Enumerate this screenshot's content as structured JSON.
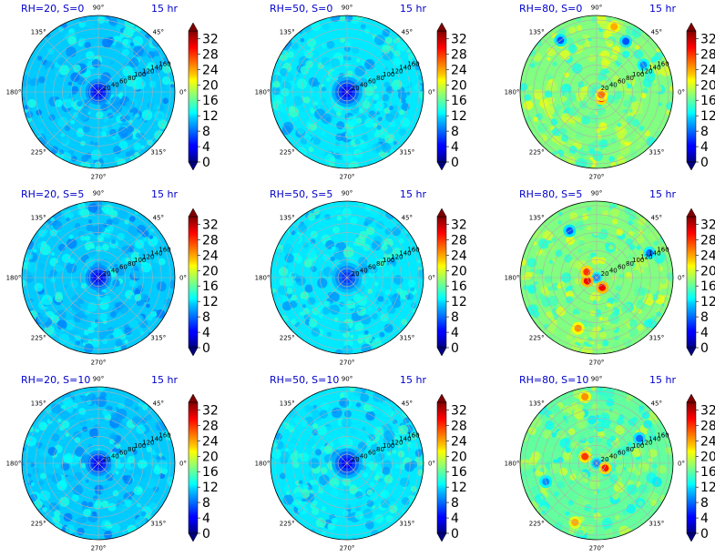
{
  "chart_data": {
    "type": "heatmap",
    "projection": "polar",
    "grid": true,
    "colormap": "jet",
    "title_color": "#0000cc",
    "time_label": "15 hr",
    "angle_tick_labels": [
      "0°",
      "45°",
      "90°",
      "135°",
      "180°",
      "225°",
      "270°",
      "315°"
    ],
    "radial_tick_labels": [
      "20",
      "40",
      "60",
      "80",
      "100",
      "120",
      "140",
      "160"
    ],
    "rlim": [
      0,
      170
    ],
    "colorbar": {
      "ticks": [
        "0",
        "4",
        "8",
        "12",
        "16",
        "20",
        "24",
        "28",
        "32"
      ],
      "vmin": 0,
      "vmax": 34,
      "extend": "both"
    },
    "panels": [
      {
        "title": "RH=20, S=0",
        "time": "15 hr",
        "rh": 20,
        "s": 0,
        "field": {
          "background_mean": 11,
          "center_value": 4,
          "center_radius": 25,
          "texture_amplitude": 3,
          "hotspots": []
        }
      },
      {
        "title": "RH=50, S=0",
        "time": "15 hr",
        "rh": 50,
        "s": 0,
        "field": {
          "background_mean": 12,
          "center_value": 4,
          "center_radius": 30,
          "texture_amplitude": 3,
          "hotspots": []
        }
      },
      {
        "title": "RH=80, S=0",
        "time": "15 hr",
        "rh": 80,
        "s": 0,
        "field": {
          "background_mean": 17,
          "center_value": 14,
          "center_radius": 15,
          "texture_amplitude": 4,
          "hotspots": [
            {
              "angle": 305,
              "r": 18,
              "value": 28
            },
            {
              "angle": 330,
              "r": 12,
              "value": 26
            },
            {
              "angle": 75,
              "r": 150,
              "value": 24
            },
            {
              "angle": 125,
              "r": 140,
              "value": 7
            },
            {
              "angle": 60,
              "r": 130,
              "value": 7
            },
            {
              "angle": 30,
              "r": 120,
              "value": 9
            }
          ]
        }
      },
      {
        "title": "RH=20, S=5",
        "time": "15 hr",
        "rh": 20,
        "s": 5,
        "field": {
          "background_mean": 11,
          "center_value": 4,
          "center_radius": 25,
          "texture_amplitude": 3,
          "hotspots": []
        }
      },
      {
        "title": "RH=50, S=5",
        "time": "15 hr",
        "rh": 50,
        "s": 5,
        "field": {
          "background_mean": 12,
          "center_value": 6,
          "center_radius": 30,
          "texture_amplitude": 3,
          "hotspots": []
        }
      },
      {
        "title": "RH=80, S=5",
        "time": "15 hr",
        "rh": 80,
        "s": 5,
        "field": {
          "background_mean": 17,
          "center_value": 8,
          "center_radius": 10,
          "texture_amplitude": 4,
          "hotspots": [
            {
              "angle": 200,
              "r": 22,
              "value": 30
            },
            {
              "angle": 300,
              "r": 25,
              "value": 30
            },
            {
              "angle": 150,
              "r": 25,
              "value": 28
            },
            {
              "angle": 120,
              "r": 120,
              "value": 7
            },
            {
              "angle": 25,
              "r": 130,
              "value": 8
            },
            {
              "angle": 250,
              "r": 120,
              "value": 25
            }
          ]
        }
      },
      {
        "title": "RH=20, S=10",
        "time": "15 hr",
        "rh": 20,
        "s": 10,
        "field": {
          "background_mean": 11,
          "center_value": 4,
          "center_radius": 25,
          "texture_amplitude": 3,
          "hotspots": []
        }
      },
      {
        "title": "RH=50, S=10",
        "time": "15 hr",
        "rh": 50,
        "s": 10,
        "field": {
          "background_mean": 12,
          "center_value": 4,
          "center_radius": 30,
          "texture_amplitude": 3,
          "hotspots": []
        }
      },
      {
        "title": "RH=80, S=10",
        "time": "15 hr",
        "rh": 80,
        "s": 10,
        "field": {
          "background_mean": 16,
          "center_value": 8,
          "center_radius": 10,
          "texture_amplitude": 4,
          "hotspots": [
            {
              "angle": 150,
              "r": 30,
              "value": 28
            },
            {
              "angle": 330,
              "r": 22,
              "value": 29
            },
            {
              "angle": 100,
              "r": 150,
              "value": 25
            },
            {
              "angle": 30,
              "r": 110,
              "value": 8
            },
            {
              "angle": 250,
              "r": 140,
              "value": 24
            },
            {
              "angle": 200,
              "r": 120,
              "value": 9
            }
          ]
        }
      }
    ]
  }
}
